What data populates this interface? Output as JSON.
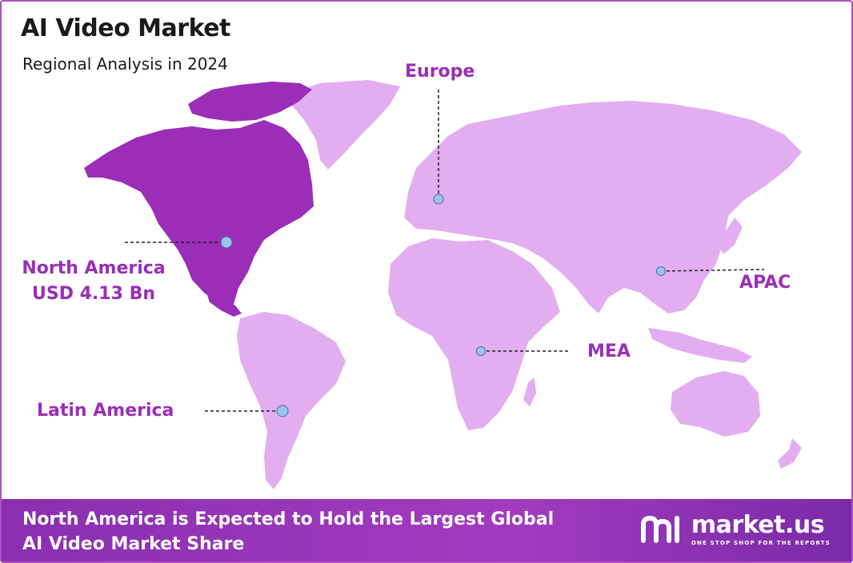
{
  "header": {
    "title": "AI Video Market",
    "subtitle": "Regional Analysis in 2024"
  },
  "regions": [
    {
      "key": "europe",
      "label": "Europe"
    },
    {
      "key": "north_america",
      "label": "North America",
      "value_label": "USD 4.13 Bn",
      "highlighted": true
    },
    {
      "key": "apac",
      "label": "APAC"
    },
    {
      "key": "mea",
      "label": "MEA"
    },
    {
      "key": "latin_america",
      "label": "Latin America"
    }
  ],
  "footer": {
    "line1": "North America is Expected to Hold the Largest Global",
    "line2": "AI Video Market Share"
  },
  "brand": {
    "name": "market.us",
    "tagline": "ONE STOP SHOP FOR THE REPORTS"
  },
  "colors": {
    "highlight_region": "#9b2db8",
    "other_regions": "#e3aef0",
    "label_text": "#9b2db8",
    "marker": "#9cc3ea",
    "footer_bg": "#8a2fb0"
  },
  "icons": [
    "market-us-logo-icon",
    "map-marker-icon"
  ]
}
